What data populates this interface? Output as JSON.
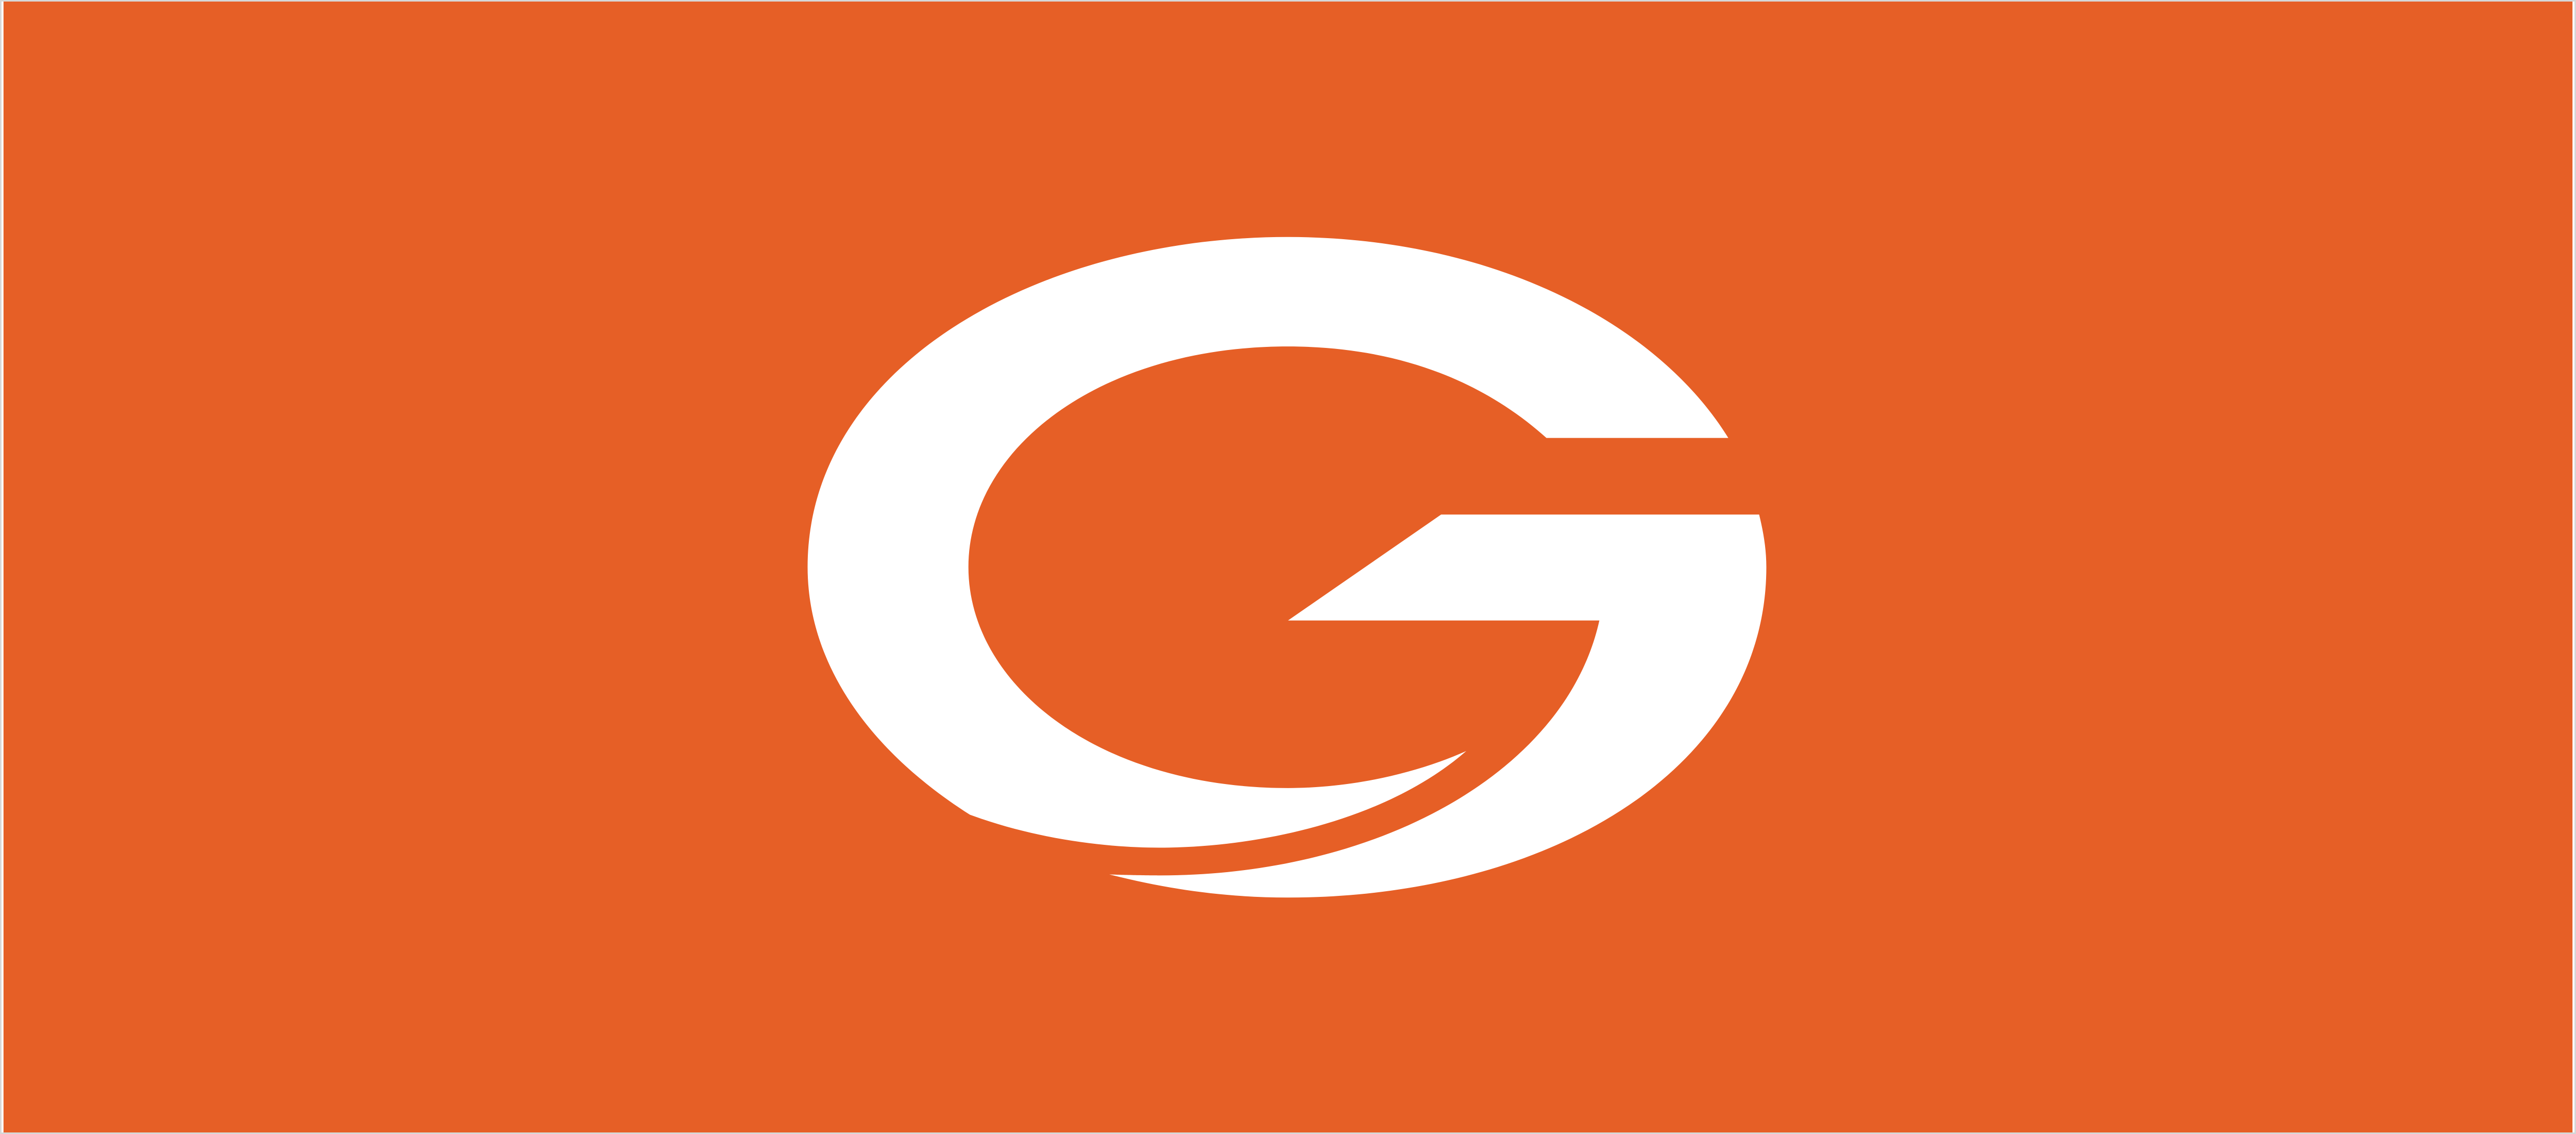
{
  "brand": {
    "logo_name": "G logo",
    "letter": "G"
  },
  "colors": {
    "background": "#e65f26",
    "logo": "#ffffff",
    "frame": "#d7d7d7"
  },
  "icons": {
    "logo": "stylized-letter-g-icon"
  }
}
